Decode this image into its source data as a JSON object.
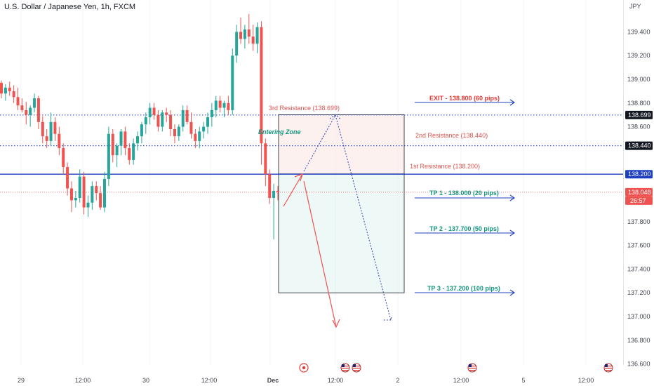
{
  "header": {
    "symbol_title": "U.S. Dollar / Japanese Yen, 1h, FXCM",
    "currency": "JPY"
  },
  "price_axis": {
    "ticks": [
      "139.400",
      "139.200",
      "139.000",
      "138.800",
      "138.600",
      "137.800",
      "137.600",
      "137.400",
      "137.200",
      "137.000",
      "136.800",
      "136.600"
    ],
    "tick_values": [
      139.4,
      139.2,
      139.0,
      138.8,
      138.6,
      137.8,
      137.6,
      137.4,
      137.2,
      137.0,
      136.8,
      136.6
    ],
    "labels": [
      {
        "text": "138.699",
        "value": 138.699,
        "style": "dark"
      },
      {
        "text": "138.440",
        "value": 138.44,
        "style": "dark"
      },
      {
        "text": "138.200",
        "value": 138.2,
        "style": "blue"
      },
      {
        "text": "138.048",
        "value": 138.048,
        "style": "red"
      }
    ],
    "countdown": "26:57"
  },
  "time_axis": {
    "labels": [
      "29",
      "12:00",
      "30",
      "12:00",
      "Dec",
      "12:00",
      "2",
      "12:00",
      "5",
      "12:00"
    ],
    "bold": [
      false,
      false,
      false,
      false,
      true,
      false,
      false,
      false,
      false,
      false
    ]
  },
  "levels": {
    "third_resistance": "3rd Resistance (138.699)",
    "second_resistance": "2nd Resistance (138.440)",
    "first_resistance": "1st Resistance (138.200)",
    "entering_zone": "Entering Zone",
    "exit": "EXIT - 138.800 (60 pips)",
    "tp1": "TP 1 - 138.000 (20 pips)",
    "tp2": "TP 2 - 137.700 (50 pips)",
    "tp3": "TP 3 - 137.200 (100 pips)"
  },
  "colors": {
    "bull": "#26a69a",
    "bear": "#ef5350",
    "level_line": "#1e3fbf",
    "resistance_text": "#e0514d",
    "tp_text": "#14967f",
    "exit_text": "#e53935",
    "arrow_blue": "#1e3fbf",
    "path_red": "#ef5350",
    "path_blue_dotted": "#3f51b5"
  },
  "event_icons": [
    "flag-us-icon",
    "flag-us-icon",
    "flag-us-icon",
    "flag-us-icon"
  ],
  "chart_data": {
    "type": "candlestick",
    "interval": "1h",
    "y_range": [
      136.55,
      139.55
    ],
    "candles": [
      [
        138.97,
        138.99,
        138.84,
        138.88
      ],
      [
        138.88,
        138.96,
        138.82,
        138.93
      ],
      [
        138.93,
        138.98,
        138.86,
        138.9
      ],
      [
        138.9,
        138.95,
        138.8,
        138.85
      ],
      [
        138.85,
        138.93,
        138.74,
        138.78
      ],
      [
        138.78,
        138.84,
        138.72,
        138.74
      ],
      [
        138.74,
        138.81,
        138.62,
        138.7
      ],
      [
        138.7,
        138.78,
        138.6,
        138.76
      ],
      [
        138.76,
        138.88,
        138.72,
        138.84
      ],
      [
        138.84,
        138.86,
        138.58,
        138.64
      ],
      [
        138.64,
        138.69,
        138.46,
        138.52
      ],
      [
        138.52,
        138.58,
        138.42,
        138.48
      ],
      [
        138.48,
        138.72,
        138.44,
        138.64
      ],
      [
        138.64,
        138.68,
        138.48,
        138.54
      ],
      [
        138.54,
        138.6,
        138.36,
        138.42
      ],
      [
        138.42,
        138.46,
        138.2,
        138.26
      ],
      [
        138.26,
        138.3,
        138.02,
        138.08
      ],
      [
        138.08,
        138.14,
        137.88,
        137.98
      ],
      [
        137.98,
        138.06,
        137.92,
        138.0
      ],
      [
        138.0,
        138.24,
        137.96,
        138.18
      ],
      [
        138.18,
        138.22,
        137.86,
        137.92
      ],
      [
        137.92,
        138.02,
        137.84,
        137.96
      ],
      [
        137.96,
        138.14,
        137.9,
        138.1
      ],
      [
        138.1,
        138.14,
        137.98,
        138.04
      ],
      [
        138.04,
        138.1,
        137.9,
        137.92
      ],
      [
        137.92,
        138.22,
        137.88,
        138.16
      ],
      [
        138.16,
        138.6,
        138.1,
        138.54
      ],
      [
        138.54,
        138.58,
        138.3,
        138.36
      ],
      [
        138.36,
        138.46,
        138.26,
        138.44
      ],
      [
        138.44,
        138.58,
        138.36,
        138.56
      ],
      [
        138.56,
        138.6,
        138.36,
        138.42
      ],
      [
        138.42,
        138.46,
        138.28,
        138.32
      ],
      [
        138.32,
        138.5,
        138.28,
        138.46
      ],
      [
        138.46,
        138.56,
        138.4,
        138.52
      ],
      [
        138.52,
        138.64,
        138.46,
        138.62
      ],
      [
        138.62,
        138.72,
        138.54,
        138.68
      ],
      [
        138.68,
        138.8,
        138.62,
        138.76
      ],
      [
        138.76,
        138.8,
        138.66,
        138.7
      ],
      [
        138.7,
        138.74,
        138.56,
        138.6
      ],
      [
        138.6,
        138.74,
        138.56,
        138.72
      ],
      [
        138.72,
        138.76,
        138.64,
        138.7
      ],
      [
        138.7,
        138.74,
        138.52,
        138.58
      ],
      [
        138.58,
        138.62,
        138.46,
        138.52
      ],
      [
        138.52,
        138.62,
        138.48,
        138.6
      ],
      [
        138.6,
        138.78,
        138.56,
        138.74
      ],
      [
        138.74,
        138.78,
        138.62,
        138.64
      ],
      [
        138.64,
        138.72,
        138.5,
        138.54
      ],
      [
        138.54,
        138.58,
        138.42,
        138.48
      ],
      [
        138.48,
        138.6,
        138.42,
        138.56
      ],
      [
        138.56,
        138.64,
        138.5,
        138.6
      ],
      [
        138.6,
        138.72,
        138.54,
        138.68
      ],
      [
        138.68,
        138.8,
        138.6,
        138.74
      ],
      [
        138.74,
        138.86,
        138.68,
        138.82
      ],
      [
        138.82,
        138.86,
        138.72,
        138.76
      ],
      [
        138.76,
        138.82,
        138.68,
        138.8
      ],
      [
        138.8,
        138.86,
        138.7,
        138.74
      ],
      [
        138.74,
        139.26,
        138.7,
        139.2
      ],
      [
        139.2,
        139.46,
        139.14,
        139.4
      ],
      [
        139.4,
        139.52,
        139.3,
        139.34
      ],
      [
        139.34,
        139.46,
        139.26,
        139.42
      ],
      [
        139.42,
        139.55,
        139.3,
        139.36
      ],
      [
        139.36,
        139.46,
        139.24,
        139.3
      ],
      [
        139.3,
        139.48,
        139.22,
        139.44
      ],
      [
        139.44,
        139.49,
        138.28,
        138.46
      ],
      [
        138.46,
        138.5,
        138.1,
        138.2
      ],
      [
        138.2,
        138.24,
        137.95,
        138.0
      ],
      [
        138.0,
        138.12,
        137.65,
        138.06
      ],
      [
        138.06,
        138.1,
        137.98,
        138.05
      ]
    ]
  }
}
